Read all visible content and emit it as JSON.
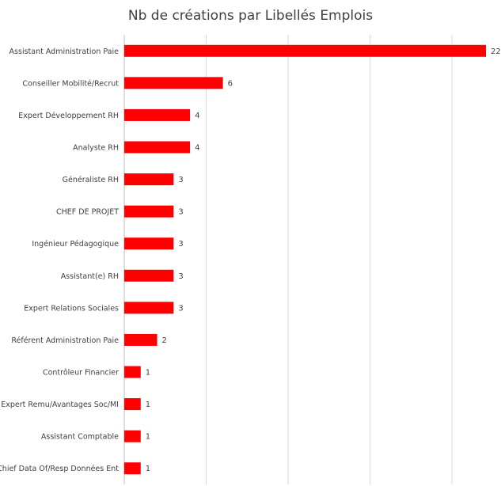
{
  "chart_data": {
    "type": "bar",
    "orientation": "horizontal",
    "title": "Nb de créations par Libellés Emplois",
    "xlabel": "",
    "ylabel": "",
    "xlim": [
      0,
      22
    ],
    "grid": true,
    "legend": "none",
    "bar_color": "#ff0000",
    "gridline_color": "#d9d9d9",
    "categories": [
      "Assistant Administration Paie",
      "Conseiller Mobilité/Recrut",
      "Expert Développement RH",
      "Analyste RH",
      "Généraliste RH",
      "CHEF DE PROJET",
      "Ingénieur Pédagogique",
      "Assistant(e) RH",
      "Expert Relations Sociales",
      "Référent Administration Paie",
      "Contrôleur Financier",
      "Expert Remu/Avantages Soc/MI",
      "Assistant Comptable",
      "Chief Data Of/Resp Données Ent"
    ],
    "values": [
      22,
      6,
      4,
      4,
      3,
      3,
      3,
      3,
      3,
      2,
      1,
      1,
      1,
      1
    ]
  }
}
